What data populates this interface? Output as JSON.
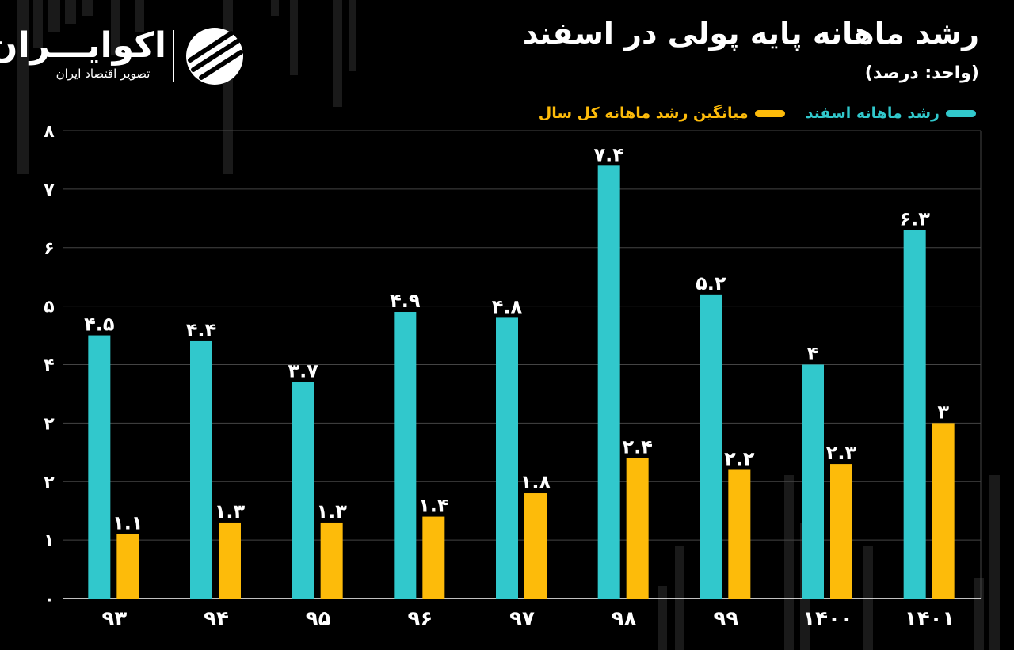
{
  "header": {
    "title": "رشد ماهانه پایه پولی در اسفند",
    "subtitle": "(واحد: درصد)"
  },
  "brand": {
    "name": "اکوایـــران",
    "tagline": "تصویر اقتصاد ایران"
  },
  "colors": {
    "background": "#000000",
    "esfand_series": "#31c8cc",
    "average_series": "#fdbb0a",
    "text": "#ffffff",
    "grid": "#444444",
    "decor_bars": "#1a1a1a"
  },
  "legend": {
    "esfand_label": "رشد ماهانه اسفند",
    "average_label": "میانگین رشد ماهانه کل سال"
  },
  "chart_data": {
    "type": "bar",
    "title": "رشد ماهانه پایه پولی در اسفند",
    "subtitle": "(واحد: درصد)",
    "categories": [
      "۹۳",
      "۹۴",
      "۹۵",
      "۹۶",
      "۹۷",
      "۹۸",
      "۹۹",
      "۱۴۰۰",
      "۱۴۰۱"
    ],
    "y_tick_labels": [
      "۰",
      "۱",
      "۲",
      "۲",
      "۴",
      "۵",
      "۶",
      "۷",
      "۸"
    ],
    "ylim": [
      0,
      8
    ],
    "grid": true,
    "legend_position": "top-right",
    "series": [
      {
        "name": "رشد ماهانه اسفند",
        "color": "#31c8cc",
        "values": [
          4.5,
          4.4,
          3.7,
          4.9,
          4.8,
          7.4,
          5.2,
          4,
          6.3
        ],
        "labels": [
          "۴.۵",
          "۴.۴",
          "۳.۷",
          "۴.۹",
          "۴.۸",
          "۷.۴",
          "۵.۲",
          "۴",
          "۶.۳"
        ]
      },
      {
        "name": "میانگین رشد ماهانه کل سال",
        "color": "#fdbb0a",
        "values": [
          1.1,
          1.3,
          1.3,
          1.4,
          1.8,
          2.4,
          2.2,
          2.3,
          3
        ],
        "labels": [
          "۱.۱",
          "۱.۳",
          "۱.۳",
          "۱.۴",
          "۱.۸",
          "۲.۴",
          "۲.۲",
          "۲.۳",
          "۳"
        ]
      }
    ]
  }
}
